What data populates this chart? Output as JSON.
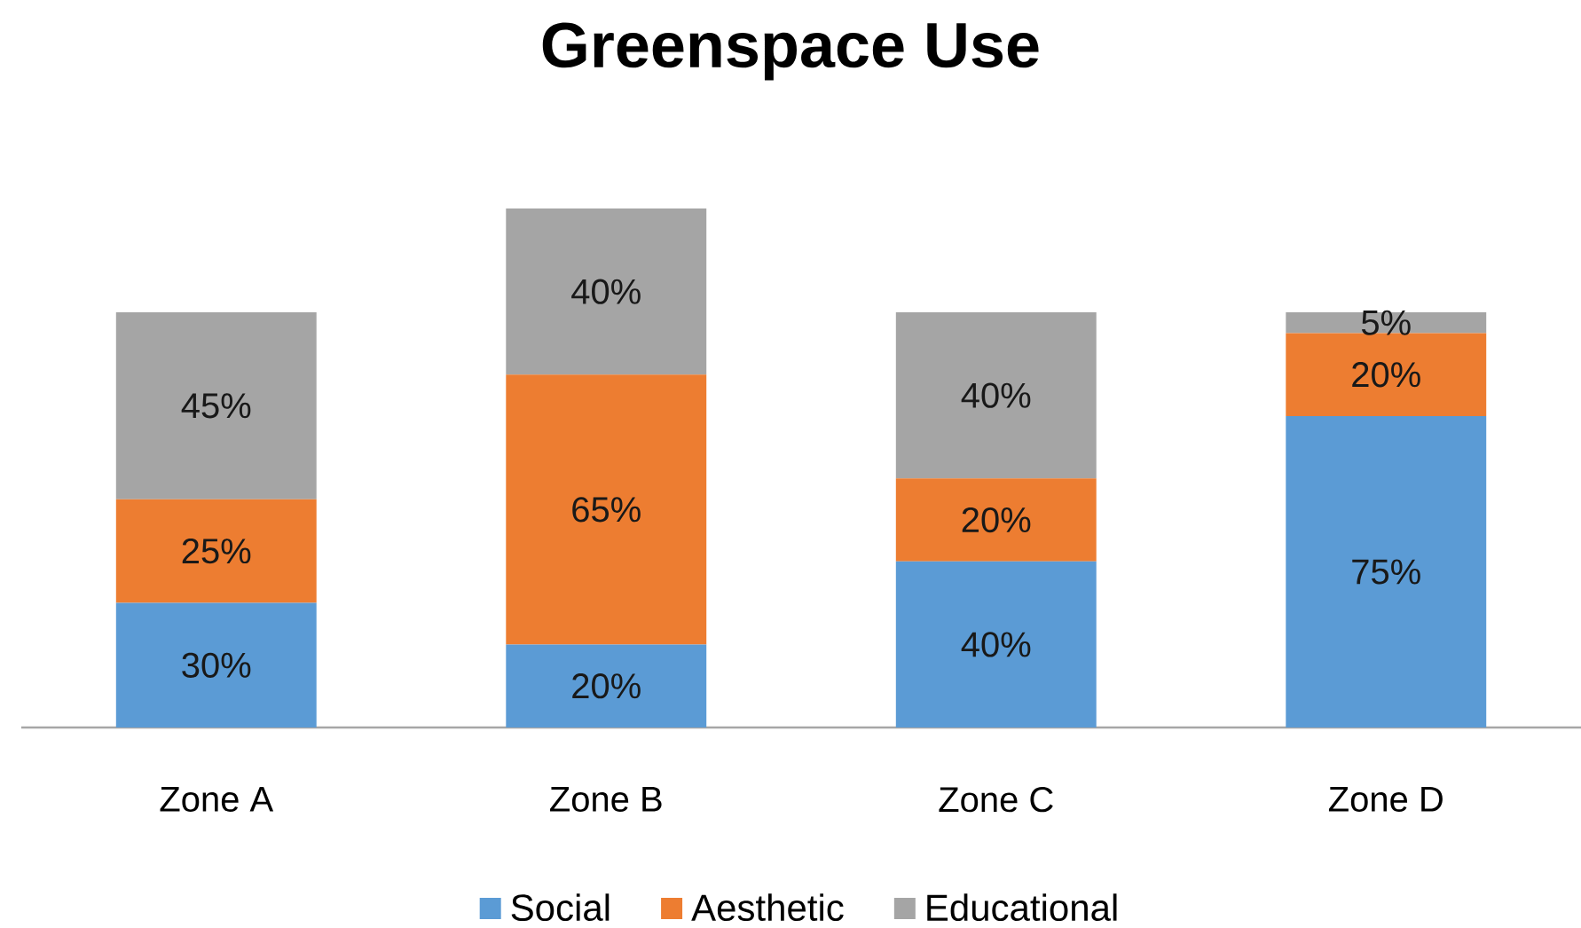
{
  "chart_data": {
    "type": "bar",
    "title": "Greenspace Use",
    "categories": [
      "Zone A",
      "Zone B",
      "Zone C",
      "Zone D"
    ],
    "stacked": true,
    "legend": "bottom",
    "series": [
      {
        "name": "Social",
        "color": "#5b9bd5",
        "values": [
          30,
          20,
          40,
          75
        ],
        "value_labels": [
          "30%",
          "20%",
          "40%",
          "75%"
        ]
      },
      {
        "name": "Aesthetic",
        "color": "#ed7d31",
        "values": [
          25,
          65,
          20,
          20
        ],
        "value_labels": [
          "25%",
          "65%",
          "20%",
          "20%"
        ]
      },
      {
        "name": "Educational",
        "color": "#a5a5a5",
        "values": [
          45,
          40,
          40,
          5
        ],
        "value_labels": [
          "45%",
          "40%",
          "40%",
          "5%"
        ]
      }
    ]
  }
}
